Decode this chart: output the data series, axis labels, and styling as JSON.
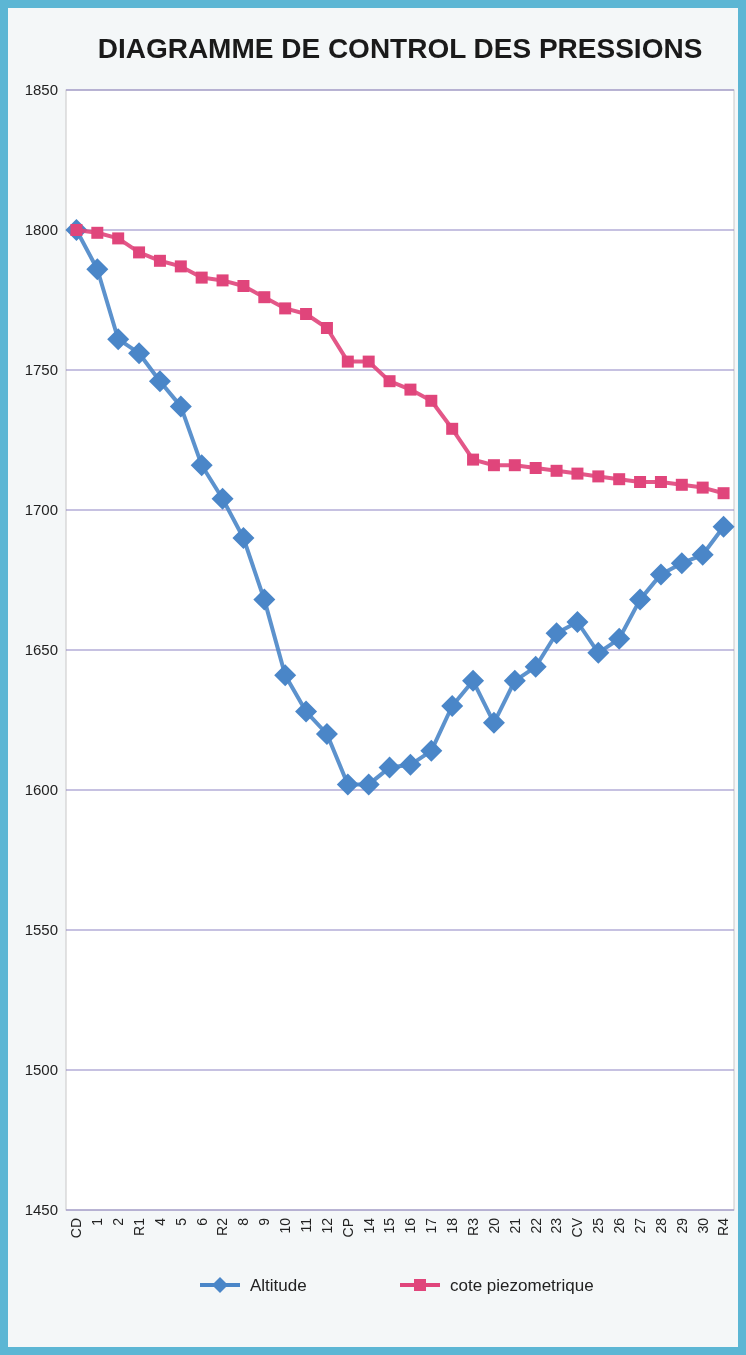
{
  "chart_data": {
    "type": "line",
    "title": "DIAGRAMME DE CONTROL DES PRESSIONS",
    "categories": [
      "CD",
      "1",
      "2",
      "R1",
      "4",
      "5",
      "6",
      "R2",
      "8",
      "9",
      "10",
      "11",
      "12",
      "CP",
      "14",
      "15",
      "16",
      "17",
      "18",
      "R3",
      "20",
      "21",
      "22",
      "23",
      "CV",
      "25",
      "26",
      "27",
      "28",
      "29",
      "30",
      "R4"
    ],
    "series": [
      {
        "name": "Altitude",
        "color": "#4a86c8",
        "marker": "diamond",
        "values": [
          1800,
          1786,
          1761,
          1756,
          1746,
          1737,
          1716,
          1704,
          1690,
          1668,
          1641,
          1628,
          1620,
          1602,
          1602,
          1608,
          1609,
          1614,
          1630,
          1639,
          1624,
          1639,
          1644,
          1656,
          1660,
          1649,
          1654,
          1668,
          1677,
          1681,
          1684,
          1694
        ]
      },
      {
        "name": "cote piezometrique",
        "color": "#e0457b",
        "marker": "square",
        "values": [
          1800,
          1799,
          1797,
          1792,
          1789,
          1787,
          1783,
          1782,
          1780,
          1776,
          1772,
          1770,
          1765,
          1753,
          1753,
          1746,
          1743,
          1739,
          1729,
          1718,
          1716,
          1716,
          1715,
          1714,
          1713,
          1712,
          1711,
          1710,
          1710,
          1709,
          1708,
          1706
        ]
      }
    ],
    "ylim": [
      1450,
      1850
    ],
    "yticks": [
      1450,
      1500,
      1550,
      1600,
      1650,
      1700,
      1750,
      1800,
      1850
    ],
    "grid": "y",
    "legend": "bottom",
    "line_style": "solid"
  }
}
